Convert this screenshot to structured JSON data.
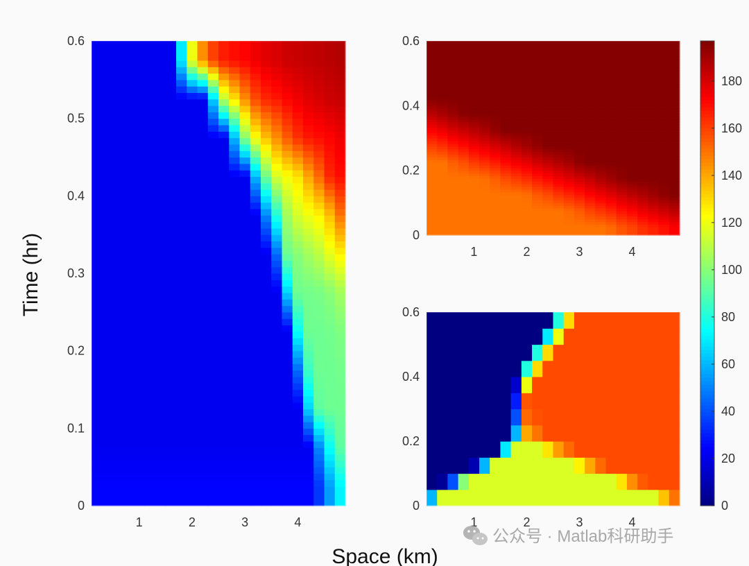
{
  "chart_data": [
    {
      "type": "heatmap",
      "panel": "left",
      "colormap": "jet",
      "clim": [
        0,
        197
      ],
      "xlim": [
        0.1,
        4.9
      ],
      "ylim": [
        0,
        0.6
      ],
      "x": [
        0.2,
        0.4,
        0.6,
        0.8,
        1.0,
        1.2,
        1.4,
        1.6,
        1.8,
        2.0,
        2.2,
        2.4,
        2.6,
        2.8,
        3.0,
        3.2,
        3.4,
        3.6,
        3.8,
        4.0,
        4.2,
        4.4,
        4.6,
        4.8
      ],
      "y": [
        0.025,
        0.075,
        0.125,
        0.175,
        0.225,
        0.275,
        0.325,
        0.375,
        0.425,
        0.475,
        0.525,
        0.575
      ],
      "xticks": [
        "1",
        "2",
        "3",
        "4"
      ],
      "yticks": [
        "0",
        "0.1",
        "0.2",
        "0.3",
        "0.4",
        "0.5",
        "0.6"
      ],
      "z": [
        [
          25,
          25,
          25,
          25,
          25,
          25,
          25,
          25,
          25,
          25,
          25,
          25,
          25,
          25,
          25,
          25,
          25,
          25,
          25,
          25,
          25,
          35,
          55,
          72
        ],
        [
          22,
          22,
          22,
          22,
          22,
          22,
          22,
          22,
          22,
          22,
          22,
          22,
          22,
          22,
          22,
          22,
          22,
          22,
          22,
          22,
          22,
          50,
          75,
          92
        ],
        [
          22,
          22,
          22,
          22,
          22,
          22,
          22,
          22,
          22,
          22,
          22,
          22,
          22,
          22,
          22,
          22,
          22,
          22,
          22,
          22,
          65,
          92,
          95,
          95
        ],
        [
          22,
          22,
          22,
          22,
          22,
          22,
          22,
          22,
          22,
          22,
          22,
          22,
          22,
          22,
          22,
          22,
          22,
          22,
          22,
          45,
          85,
          95,
          95,
          96
        ],
        [
          22,
          22,
          22,
          22,
          22,
          22,
          22,
          22,
          22,
          22,
          22,
          22,
          22,
          22,
          22,
          22,
          22,
          22,
          22,
          75,
          95,
          95,
          96,
          98
        ],
        [
          22,
          22,
          22,
          22,
          22,
          22,
          22,
          22,
          22,
          22,
          22,
          22,
          22,
          22,
          22,
          22,
          22,
          22,
          65,
          95,
          96,
          97,
          100,
          105
        ],
        [
          22,
          22,
          22,
          22,
          22,
          22,
          22,
          22,
          22,
          22,
          22,
          22,
          22,
          22,
          22,
          22,
          22,
          45,
          95,
          100,
          105,
          110,
          118,
          125
        ],
        [
          22,
          22,
          22,
          22,
          22,
          22,
          22,
          22,
          22,
          22,
          22,
          22,
          22,
          22,
          22,
          22,
          50,
          80,
          105,
          115,
          120,
          125,
          135,
          150
        ],
        [
          22,
          22,
          22,
          22,
          22,
          22,
          22,
          22,
          22,
          22,
          22,
          22,
          22,
          22,
          22,
          60,
          95,
          115,
          122,
          128,
          140,
          152,
          165,
          170
        ],
        [
          22,
          22,
          22,
          22,
          22,
          22,
          22,
          22,
          22,
          22,
          22,
          22,
          22,
          60,
          100,
          122,
          135,
          145,
          155,
          163,
          168,
          170,
          172,
          175
        ],
        [
          22,
          22,
          22,
          22,
          22,
          22,
          22,
          22,
          22,
          22,
          22,
          65,
          110,
          128,
          145,
          158,
          165,
          168,
          172,
          175,
          178,
          180,
          182,
          183
        ],
        [
          22,
          22,
          22,
          22,
          22,
          22,
          22,
          22,
          70,
          120,
          145,
          160,
          167,
          170,
          172,
          175,
          178,
          180,
          182,
          183,
          184,
          185,
          186,
          187
        ]
      ]
    },
    {
      "type": "heatmap",
      "panel": "top-right",
      "colormap": "jet",
      "clim": [
        0,
        197
      ],
      "xlim": [
        0.1,
        4.9
      ],
      "ylim": [
        0,
        0.6
      ],
      "x": [
        0.2,
        0.4,
        0.6,
        0.8,
        1.0,
        1.2,
        1.4,
        1.6,
        1.8,
        2.0,
        2.2,
        2.4,
        2.6,
        2.8,
        3.0,
        3.2,
        3.4,
        3.6,
        3.8,
        4.0,
        4.2,
        4.4,
        4.6,
        4.8
      ],
      "y": [
        0.025,
        0.075,
        0.125,
        0.175,
        0.225,
        0.275,
        0.325,
        0.375,
        0.425,
        0.475,
        0.525,
        0.575
      ],
      "xticks": [
        "1",
        "2",
        "3",
        "4"
      ],
      "yticks": [
        "0",
        "0.2",
        "0.4",
        "0.6"
      ],
      "z": [
        [
          150,
          150,
          150,
          150,
          150,
          150,
          150,
          150,
          150,
          150,
          150,
          150,
          150,
          150,
          150,
          150,
          150,
          152,
          156,
          159,
          163,
          166,
          169,
          173
        ],
        [
          150,
          150,
          150,
          150,
          150,
          150,
          150,
          150,
          150,
          150,
          150,
          150,
          150,
          152,
          155,
          159,
          162,
          165,
          169,
          172,
          176,
          179,
          182,
          185
        ],
        [
          150,
          150,
          150,
          150,
          150,
          150,
          150,
          150,
          150,
          151,
          155,
          158,
          162,
          165,
          168,
          172,
          175,
          178,
          182,
          185,
          188,
          191,
          194,
          196
        ],
        [
          150,
          150,
          150,
          150,
          150,
          151,
          154,
          158,
          161,
          164,
          168,
          171,
          175,
          178,
          181,
          184,
          188,
          191,
          194,
          196,
          196,
          196,
          196,
          196
        ],
        [
          150,
          150,
          154,
          157,
          161,
          164,
          167,
          171,
          174,
          177,
          181,
          184,
          187,
          190,
          194,
          196,
          196,
          196,
          196,
          196,
          196,
          196,
          196,
          196
        ],
        [
          160,
          163,
          167,
          170,
          174,
          177,
          180,
          183,
          187,
          190,
          193,
          196,
          196,
          196,
          196,
          196,
          196,
          196,
          196,
          196,
          196,
          196,
          196,
          196
        ],
        [
          173,
          176,
          180,
          183,
          186,
          189,
          193,
          196,
          196,
          196,
          196,
          196,
          196,
          196,
          196,
          196,
          196,
          196,
          196,
          196,
          196,
          196,
          196,
          196
        ],
        [
          186,
          189,
          192,
          195,
          196,
          196,
          196,
          196,
          196,
          196,
          196,
          196,
          196,
          196,
          196,
          196,
          196,
          196,
          196,
          196,
          196,
          196,
          196,
          196
        ],
        [
          196,
          196,
          196,
          196,
          196,
          196,
          196,
          196,
          196,
          196,
          196,
          196,
          196,
          196,
          196,
          196,
          196,
          196,
          196,
          196,
          196,
          196,
          196,
          196
        ],
        [
          196,
          196,
          196,
          196,
          196,
          196,
          196,
          196,
          196,
          196,
          196,
          196,
          196,
          196,
          196,
          196,
          196,
          196,
          196,
          196,
          196,
          196,
          196,
          196
        ],
        [
          196,
          196,
          196,
          196,
          196,
          196,
          196,
          196,
          196,
          196,
          196,
          196,
          196,
          196,
          196,
          196,
          196,
          196,
          196,
          196,
          196,
          196,
          196,
          196
        ],
        [
          196,
          196,
          196,
          196,
          196,
          196,
          196,
          196,
          196,
          196,
          196,
          196,
          196,
          196,
          196,
          196,
          196,
          196,
          196,
          196,
          196,
          196,
          196,
          196
        ]
      ]
    },
    {
      "type": "heatmap",
      "panel": "bottom-right",
      "colormap": "jet",
      "clim": [
        0,
        197
      ],
      "xlim": [
        0.1,
        4.9
      ],
      "ylim": [
        0,
        0.6
      ],
      "x": [
        0.2,
        0.4,
        0.6,
        0.8,
        1.0,
        1.2,
        1.4,
        1.6,
        1.8,
        2.0,
        2.2,
        2.4,
        2.6,
        2.8,
        3.0,
        3.2,
        3.4,
        3.6,
        3.8,
        4.0,
        4.2,
        4.4,
        4.6,
        4.8
      ],
      "y": [
        0.025,
        0.075,
        0.125,
        0.175,
        0.225,
        0.275,
        0.325,
        0.375,
        0.425,
        0.475,
        0.525,
        0.575
      ],
      "xticks": [
        "1",
        "2",
        "3",
        "4"
      ],
      "yticks": [
        "0",
        "0.2",
        "0.4",
        "0.6"
      ],
      "z": [
        [
          60,
          116,
          116,
          116,
          116,
          116,
          116,
          116,
          116,
          116,
          116,
          116,
          116,
          116,
          116,
          116,
          116,
          116,
          116,
          116,
          116,
          116,
          135,
          150
        ],
        [
          0,
          5,
          40,
          100,
          116,
          116,
          116,
          116,
          116,
          116,
          116,
          116,
          116,
          116,
          116,
          116,
          116,
          116,
          128,
          145,
          155,
          158,
          158,
          158
        ],
        [
          0,
          0,
          0,
          0,
          10,
          60,
          116,
          116,
          116,
          116,
          116,
          116,
          116,
          116,
          125,
          140,
          152,
          158,
          158,
          158,
          158,
          158,
          158,
          158
        ],
        [
          0,
          0,
          0,
          0,
          0,
          0,
          0,
          70,
          116,
          116,
          116,
          128,
          142,
          152,
          158,
          158,
          158,
          158,
          158,
          158,
          158,
          158,
          158,
          158
        ],
        [
          0,
          0,
          0,
          0,
          0,
          0,
          0,
          0,
          60,
          140,
          150,
          158,
          158,
          158,
          158,
          158,
          158,
          158,
          158,
          158,
          158,
          158,
          158,
          158
        ],
        [
          0,
          0,
          0,
          0,
          0,
          0,
          0,
          0,
          40,
          152,
          157,
          158,
          158,
          158,
          158,
          158,
          158,
          158,
          158,
          158,
          158,
          158,
          158,
          158
        ],
        [
          0,
          0,
          0,
          0,
          0,
          0,
          0,
          0,
          30,
          156,
          158,
          158,
          158,
          158,
          158,
          158,
          158,
          158,
          158,
          158,
          158,
          158,
          158,
          158
        ],
        [
          0,
          0,
          0,
          0,
          0,
          0,
          0,
          0,
          15,
          120,
          158,
          158,
          158,
          158,
          158,
          158,
          158,
          158,
          158,
          158,
          158,
          158,
          158,
          158
        ],
        [
          0,
          0,
          0,
          0,
          0,
          0,
          0,
          0,
          0,
          80,
          130,
          158,
          158,
          158,
          158,
          158,
          158,
          158,
          158,
          158,
          158,
          158,
          158,
          158
        ],
        [
          0,
          0,
          0,
          0,
          0,
          0,
          0,
          0,
          0,
          0,
          80,
          130,
          158,
          158,
          158,
          158,
          158,
          158,
          158,
          158,
          158,
          158,
          158,
          158
        ],
        [
          0,
          0,
          0,
          0,
          0,
          0,
          0,
          0,
          0,
          0,
          0,
          70,
          120,
          158,
          158,
          158,
          158,
          158,
          158,
          158,
          158,
          158,
          158,
          158
        ],
        [
          0,
          0,
          0,
          0,
          0,
          0,
          0,
          0,
          0,
          0,
          0,
          0,
          80,
          130,
          158,
          158,
          158,
          158,
          158,
          158,
          158,
          158,
          158,
          158
        ]
      ]
    }
  ],
  "colorbar": {
    "colormap": "jet",
    "range": [
      0,
      197
    ],
    "ticks": [
      "0",
      "20",
      "40",
      "60",
      "80",
      "100",
      "120",
      "140",
      "160",
      "180"
    ]
  },
  "labels": {
    "ylabel": "Time (hr)",
    "xlabel": "Space (km)"
  },
  "watermark": {
    "text": "公众号 · Matlab科研助手",
    "icon": "wechat-icon"
  }
}
